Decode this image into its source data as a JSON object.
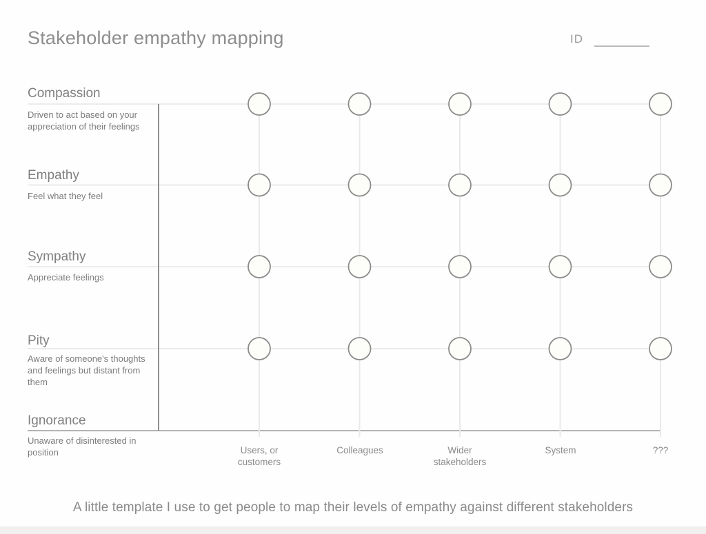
{
  "title": "Stakeholder empathy mapping",
  "id_field": {
    "label": "ID",
    "value": ""
  },
  "rows": [
    {
      "label": "Compassion",
      "description": "Driven to act based on your appreciation of their feelings"
    },
    {
      "label": "Empathy",
      "description": "Feel what they feel"
    },
    {
      "label": "Sympathy",
      "description": "Appreciate feelings"
    },
    {
      "label": "Pity",
      "description": "Aware of someone's thoughts and feelings but distant from them"
    },
    {
      "label": "Ignorance",
      "description": "Unaware of disinterested in position"
    }
  ],
  "columns": [
    {
      "label": "Users, or customers"
    },
    {
      "label": "Colleagues"
    },
    {
      "label": "Wider stakeholders"
    },
    {
      "label": "System"
    },
    {
      "label": "???"
    }
  ],
  "caption": "A little template I use to get people to map their levels of empathy against different stakeholders",
  "colors": {
    "row_line": "#ececec",
    "col_line": "#e9e9e9",
    "axis_line": "#8f8f8f",
    "base_line": "#b3b3b3",
    "dot_stroke": "#8c8c8c",
    "dot_fill": "#fdfdf9",
    "text_primary": "#8d8d8d",
    "text_secondary": "#7c7c7c",
    "footer_strip": "#f1f0ef"
  }
}
